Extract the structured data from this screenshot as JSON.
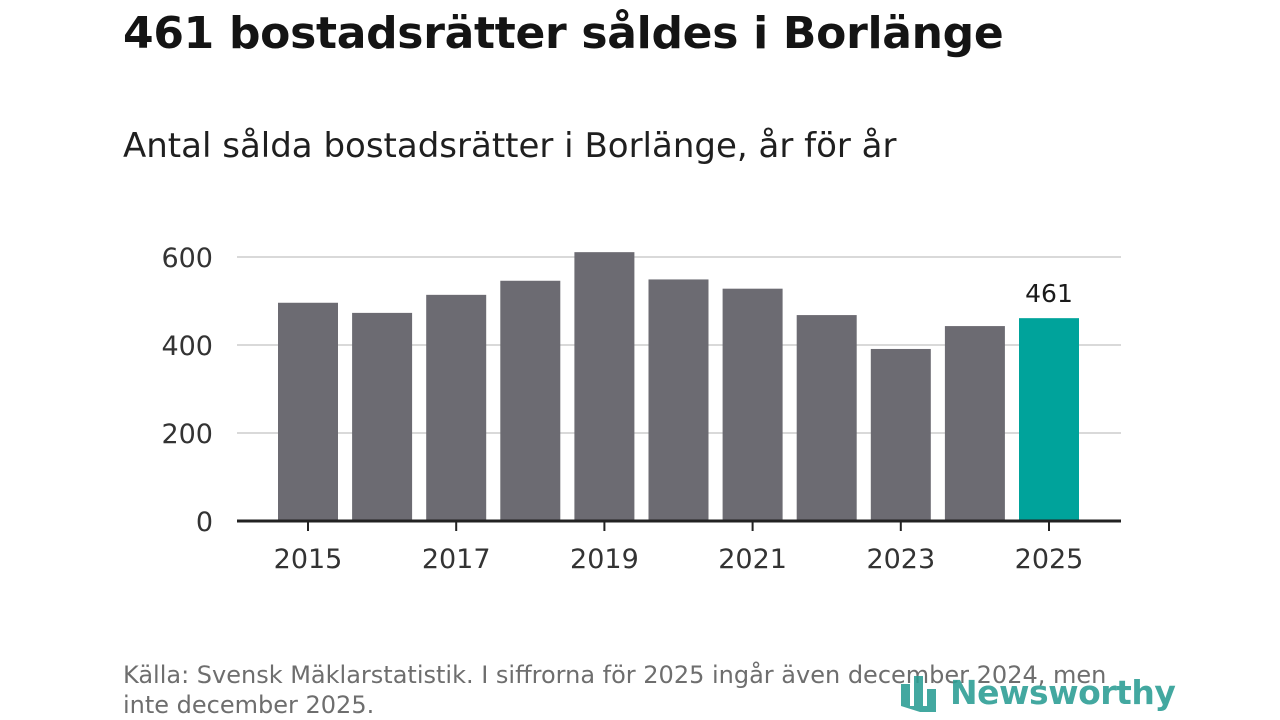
{
  "title": "461 bostadsrätter såldes i Borlänge",
  "subtitle": "Antal sålda bostadsrätter i Borlänge, år för år",
  "source": "Källa: Svensk Mäklarstatistik. I siffrorna för 2025 ingår även december 2024, men inte december 2025.",
  "brand": "Newsworthy",
  "colors": {
    "bar": "#6c6b72",
    "highlight": "#00a39b",
    "grid": "#d9d9d9",
    "axis": "#222222",
    "brand": "#2a9d93"
  },
  "chart_data": {
    "type": "bar",
    "categories": [
      "2015",
      "2016",
      "2017",
      "2018",
      "2019",
      "2020",
      "2021",
      "2022",
      "2023",
      "2024",
      "2025"
    ],
    "values": [
      496,
      473,
      514,
      546,
      611,
      549,
      528,
      468,
      391,
      443,
      461
    ],
    "highlight": "2025",
    "data_labels": [
      {
        "category": "2025",
        "text": "461"
      }
    ],
    "yticks": [
      0,
      200,
      400,
      600
    ],
    "xticks": [
      "2015",
      "2017",
      "2019",
      "2021",
      "2023",
      "2025"
    ],
    "ylim": [
      0,
      600
    ],
    "grid": true,
    "legend": "none"
  }
}
